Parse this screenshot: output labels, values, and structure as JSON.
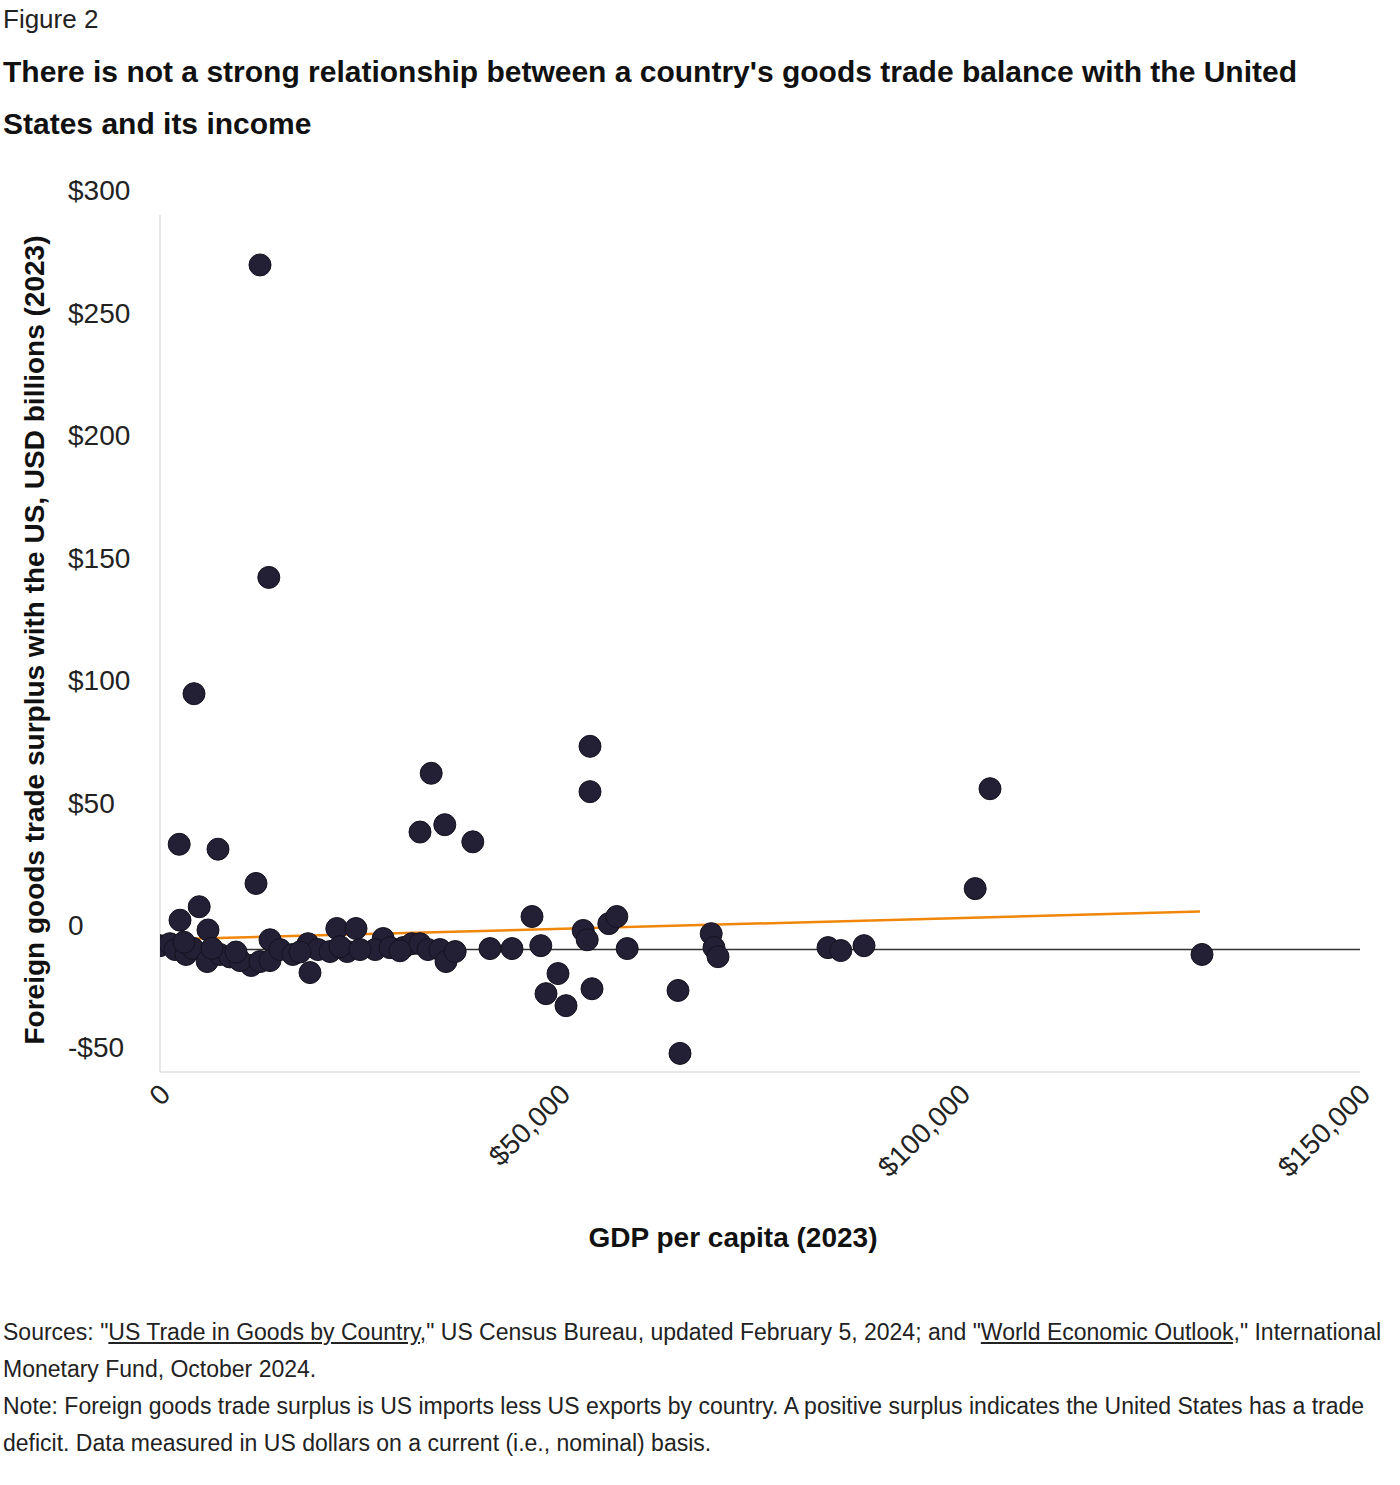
{
  "chart_data": {
    "type": "scatter",
    "figure_label": "Figure 2",
    "title": "There is not a strong relationship between a country's goods trade balance with the United States and its income",
    "x_label": "GDP per capita (2023)",
    "y_label": "Foreign goods trade surplus with the US, USD billions (2023)",
    "xlim": [
      0,
      150000
    ],
    "xticks": [
      0,
      {
        "value": 50000,
        "label": "$50,000"
      },
      {
        "value": 100000,
        "label": "$100,000"
      },
      {
        "value": 150000,
        "label": "$150,000"
      }
    ],
    "ylim": [
      -50,
      300
    ],
    "yticks": [
      {
        "value": -50,
        "label": "-$50"
      },
      0,
      {
        "value": 50,
        "label": "$50"
      },
      {
        "value": 100,
        "label": "$100"
      },
      {
        "value": 150,
        "label": "$150"
      },
      {
        "value": 200,
        "label": "$200"
      },
      {
        "value": 250,
        "label": "$250"
      },
      {
        "value": 300,
        "label": "$300"
      }
    ],
    "grid": false,
    "series": [
      {
        "type": "scatter",
        "marker": "circle",
        "color": "#231f35",
        "x": [
          12500,
          13600,
          4250,
          2400,
          7250,
          12000,
          4900,
          2500,
          6000,
          32500,
          33900,
          35600,
          39100,
          53750,
          53750,
          46500,
          56100,
          57100,
          52900,
          53400,
          58400,
          54000,
          47600,
          49750,
          48250,
          50750,
          64750,
          65000,
          68900,
          69250,
          69750,
          83500,
          85100,
          88000,
          101900,
          103750,
          130250,
          18750,
          22100,
          24500,
          27900,
          41250,
          44000,
          13750,
          11400,
          0,
          1250,
          1900,
          3250,
          4100,
          5900,
          7500,
          8750,
          10000,
          12500,
          13750,
          15000,
          16600,
          18500,
          19750,
          21250,
          23400,
          26900,
          28750,
          30400,
          31500,
          32500,
          33500,
          35000,
          35750,
          36900,
          22500,
          25000,
          17500,
          9500,
          6500,
          3000,
          30000
        ],
        "values": [
          279.6,
          152,
          104.5,
          43,
          41,
          27,
          17.5,
          12,
          8,
          48,
          72,
          51,
          44,
          83,
          64.5,
          13.5,
          10.6,
          13.5,
          7.8,
          4,
          0.4,
          -16,
          1.6,
          -9.8,
          -18,
          -22.9,
          -16.7,
          -42.4,
          6.5,
          0.8,
          -2.9,
          0.8,
          -0.4,
          1.6,
          24.9,
          65.7,
          -2,
          -9.4,
          8.6,
          8.6,
          4.5,
          0.4,
          0.4,
          4,
          -6.5,
          1.6,
          2.4,
          0,
          -2,
          0.5,
          -4.9,
          -2,
          -3,
          -4.5,
          -4.9,
          -4.5,
          0,
          -2,
          2.4,
          0,
          -0.8,
          -0.8,
          0,
          0.8,
          0.8,
          2.4,
          2.4,
          0,
          0,
          -4.9,
          -0.8,
          1.2,
          0,
          -1,
          -1,
          0.5,
          3,
          -0.5
        ]
      },
      {
        "type": "line",
        "line_style": "solid",
        "color": "#f0870a",
        "x": [
          375,
          130000
        ],
        "values": [
          4.1,
          15.5
        ]
      }
    ],
    "sources": [
      {
        "text": "Sources: \""
      },
      {
        "text": "US Trade in Goods by Country,",
        "underline": true
      },
      {
        "text": "\" US Census Bureau, updated February 5, 2024; and \""
      },
      {
        "text": "World Economic Outlook,",
        "underline": true
      },
      {
        "text": "\" International Monetary Fund, October 2024."
      }
    ],
    "note": "Note: Foreign goods trade surplus is US imports less US exports by country. A positive surplus indicates the United States has a trade deficit. Data measured in US dollars on a current (i.e., nominal) basis."
  }
}
